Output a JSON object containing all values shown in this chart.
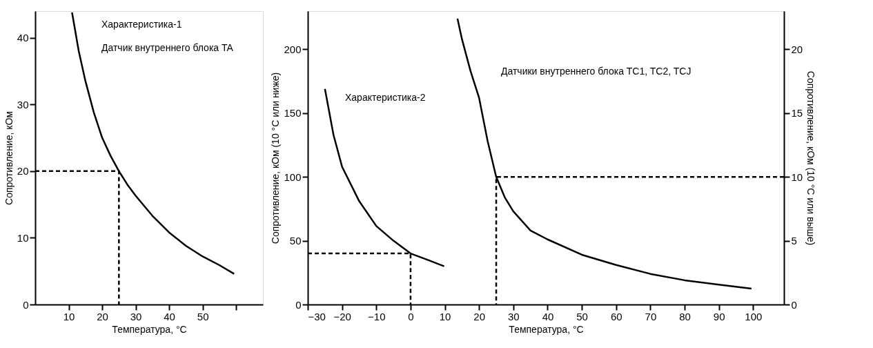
{
  "chart_data": [
    {
      "type": "line",
      "xlabel": "Температура, °C",
      "ylabel": "Сопротивление, кОм",
      "annotations": [
        "Характеристика-1",
        "Датчик внутреннего блока TA"
      ],
      "xlim": [
        0,
        68
      ],
      "xticks": [
        10,
        20,
        30,
        40,
        50,
        {
          "value": 60,
          "label": null
        }
      ],
      "ylim": [
        0,
        44
      ],
      "yticks": [
        0,
        10,
        20,
        30,
        40
      ],
      "grid": false,
      "marker": "none",
      "series": [
        {
          "color": "#000000",
          "line_style": "solid",
          "x": [
            11,
            13,
            15,
            17.5,
            20,
            22.5,
            25,
            27.5,
            30,
            35,
            40,
            45,
            50,
            55,
            59.4
          ],
          "values": [
            43.8,
            38,
            33.5,
            28.8,
            25,
            22.3,
            20,
            18,
            16.3,
            13.3,
            10.8,
            8.8,
            7.2,
            5.9,
            4.6
          ]
        },
        {
          "color": "#000000",
          "line_style": "dashed",
          "x": [
            0,
            25,
            25
          ],
          "values": [
            20,
            20,
            0
          ]
        }
      ]
    },
    {
      "type": "line",
      "xlabel": "Температура, °C",
      "ylabel": "Сопротивление, кОм (10 °C или ниже)",
      "y2label": "Сопротивление, кОм (10 °C или выше)",
      "annotations": [
        "Характеристика-2",
        "Датчики внутреннего блока TC1, TC2, TCJ"
      ],
      "xlim": [
        -30,
        109
      ],
      "xticks": [
        -30,
        -20,
        -10,
        0,
        10,
        20,
        30,
        40,
        50,
        60,
        70,
        80,
        90,
        100
      ],
      "ylim": [
        0,
        230
      ],
      "yticks": [
        0,
        50,
        100,
        150,
        200
      ],
      "y2lim": [
        0,
        23
      ],
      "y2ticks": [
        0,
        5,
        10,
        15,
        20
      ],
      "grid": false,
      "marker": "none",
      "series": [
        {
          "color": "#000000",
          "line_style": "solid",
          "x": [
            -25,
            -22.5,
            -20,
            -15,
            -10,
            -5,
            0,
            5,
            9.8
          ],
          "values": [
            169,
            133,
            108,
            81,
            61.5,
            50,
            40,
            35,
            30
          ]
        },
        {
          "color": "#000000",
          "line_style": "solid",
          "axis": "y2",
          "x": [
            13.7,
            15,
            17.5,
            20,
            22.5,
            25,
            27.5,
            30,
            35,
            40,
            50,
            60,
            70,
            80,
            90,
            99.5
          ],
          "values": [
            22.4,
            20.8,
            18.3,
            16.2,
            12.8,
            10,
            8.4,
            7.3,
            5.8,
            5.1,
            3.9,
            3.1,
            2.4,
            1.9,
            1.55,
            1.25
          ]
        },
        {
          "color": "#000000",
          "line_style": "dashed",
          "x": [
            -30,
            0,
            0
          ],
          "values": [
            40,
            40,
            0
          ]
        },
        {
          "color": "#000000",
          "line_style": "dashed",
          "x": [
            109,
            25,
            25
          ],
          "values": [
            100,
            100,
            0
          ]
        }
      ]
    }
  ]
}
